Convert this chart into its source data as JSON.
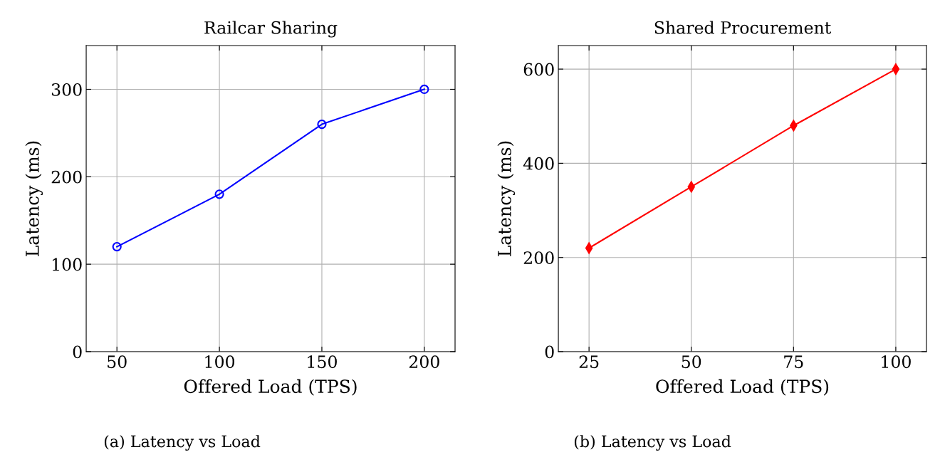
{
  "chart_data": [
    {
      "type": "line",
      "title": "Railcar Sharing",
      "xlabel": "Offered Load (TPS)",
      "ylabel": "Latency (ms)",
      "x": [
        50,
        100,
        150,
        200
      ],
      "series": [
        {
          "color": "#0000ff",
          "values": [
            120,
            180,
            260,
            300
          ]
        }
      ],
      "xlim": [
        35,
        215
      ],
      "xticks": [
        50,
        100,
        150,
        200
      ],
      "ylim": [
        0,
        350
      ],
      "yticks": [
        0,
        100,
        200,
        300
      ],
      "grid": true,
      "marker": "circle",
      "line_style": "solid",
      "annotations": [
        "(a) Latency vs Load"
      ]
    },
    {
      "type": "line",
      "title": "Shared Procurement",
      "xlabel": "Offered Load (TPS)",
      "ylabel": "Latency (ms)",
      "x": [
        25,
        50,
        75,
        100
      ],
      "series": [
        {
          "color": "#ff0000",
          "values": [
            220,
            350,
            480,
            600
          ]
        }
      ],
      "xlim": [
        17.5,
        107.5
      ],
      "xticks": [
        25,
        50,
        75,
        100
      ],
      "ylim": [
        0,
        650
      ],
      "yticks": [
        0,
        200,
        400,
        600
      ],
      "grid": true,
      "marker": "diamond",
      "line_style": "solid",
      "annotations": [
        "(b) Latency vs Load"
      ]
    }
  ]
}
